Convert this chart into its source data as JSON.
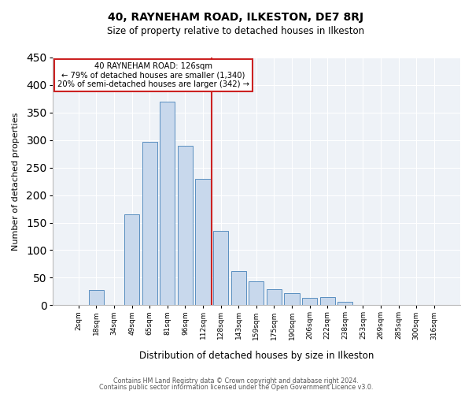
{
  "title": "40, RAYNEHAM ROAD, ILKESTON, DE7 8RJ",
  "subtitle": "Size of property relative to detached houses in Ilkeston",
  "xlabel": "Distribution of detached houses by size in Ilkeston",
  "ylabel": "Number of detached properties",
  "bin_labels": [
    "2sqm",
    "18sqm",
    "34sqm",
    "49sqm",
    "65sqm",
    "81sqm",
    "96sqm",
    "112sqm",
    "128sqm",
    "143sqm",
    "159sqm",
    "175sqm",
    "190sqm",
    "206sqm",
    "222sqm",
    "238sqm",
    "253sqm",
    "269sqm",
    "285sqm",
    "300sqm",
    "316sqm"
  ],
  "bar_heights": [
    0,
    28,
    0,
    165,
    297,
    370,
    290,
    230,
    135,
    62,
    43,
    29,
    22,
    14,
    15,
    6,
    0,
    0,
    0,
    0,
    0
  ],
  "bar_color": "#c8d8ec",
  "bar_edge_color": "#5a8fc0",
  "vline_color": "#cc2222",
  "annotation_title": "40 RAYNEHAM ROAD: 126sqm",
  "annotation_line1": "← 79% of detached houses are smaller (1,340)",
  "annotation_line2": "20% of semi-detached houses are larger (342) →",
  "annotation_box_color": "#ffffff",
  "annotation_box_edge": "#cc2222",
  "ylim": [
    0,
    450
  ],
  "yticks": [
    0,
    50,
    100,
    150,
    200,
    250,
    300,
    350,
    400,
    450
  ],
  "footer1": "Contains HM Land Registry data © Crown copyright and database right 2024.",
  "footer2": "Contains public sector information licensed under the Open Government Licence v3.0.",
  "bg_color": "#ffffff",
  "plot_bg_color": "#eef2f7",
  "grid_color": "#ffffff",
  "bar_width": 0.85
}
